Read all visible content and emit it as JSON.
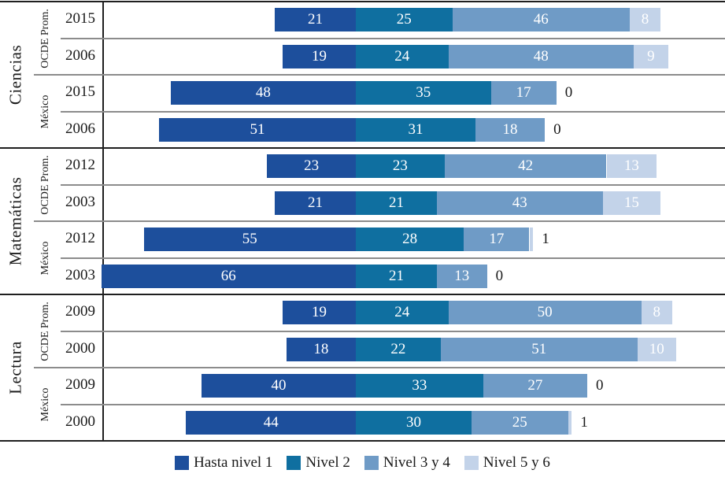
{
  "legend": {
    "items": [
      {
        "label": "Hasta nivel 1",
        "color": "#1d4f9c"
      },
      {
        "label": "Nivel 2",
        "color": "#0f6fa0"
      },
      {
        "label": "Nivel 3 y 4",
        "color": "#6f9bc6"
      },
      {
        "label": "Nivel 5 y 6",
        "color": "#c3d3e9"
      }
    ]
  },
  "colors": {
    "rule_black": "#1f1f1f",
    "rule_gray": "#8c8c8c",
    "bar_value_text": "#ffffff",
    "text": "#1a1a1a"
  },
  "chart_data": {
    "type": "bar",
    "variant": "horizontal-diverging-stacked",
    "unit": "percent",
    "alignment_note": "All bars aligned at the boundary between 'Hasta nivel 1' and 'Nivel 2'; values 0 and 1 labeled outside the bar in black",
    "series_labels": [
      "Hasta nivel 1",
      "Nivel 2",
      "Nivel 3 y 4",
      "Nivel 5 y 6"
    ],
    "groups": [
      {
        "subject": "Ciencias",
        "subgroups": [
          {
            "name": "OCDE Prom.",
            "rows": [
              {
                "year": "2015",
                "values": [
                  21,
                  25,
                  46,
                  8
                ]
              },
              {
                "year": "2006",
                "values": [
                  19,
                  24,
                  48,
                  9
                ]
              }
            ]
          },
          {
            "name": "México",
            "rows": [
              {
                "year": "2015",
                "values": [
                  48,
                  35,
                  17,
                  0
                ]
              },
              {
                "year": "2006",
                "values": [
                  51,
                  31,
                  18,
                  0
                ]
              }
            ]
          }
        ]
      },
      {
        "subject": "Matemáticas",
        "subgroups": [
          {
            "name": "OCDE Prom.",
            "rows": [
              {
                "year": "2012",
                "values": [
                  23,
                  23,
                  42,
                  13
                ]
              },
              {
                "year": "2003",
                "values": [
                  21,
                  21,
                  43,
                  15
                ]
              }
            ]
          },
          {
            "name": "México",
            "rows": [
              {
                "year": "2012",
                "values": [
                  55,
                  28,
                  17,
                  1
                ]
              },
              {
                "year": "2003",
                "values": [
                  66,
                  21,
                  13,
                  0
                ]
              }
            ]
          }
        ]
      },
      {
        "subject": "Lectura",
        "subgroups": [
          {
            "name": "OCDE Prom.",
            "rows": [
              {
                "year": "2009",
                "values": [
                  19,
                  24,
                  50,
                  8
                ]
              },
              {
                "year": "2000",
                "values": [
                  18,
                  22,
                  51,
                  10
                ]
              }
            ]
          },
          {
            "name": "México",
            "rows": [
              {
                "year": "2009",
                "values": [
                  40,
                  33,
                  27,
                  0
                ]
              },
              {
                "year": "2000",
                "values": [
                  44,
                  30,
                  25,
                  1
                ]
              }
            ]
          }
        ]
      }
    ]
  }
}
